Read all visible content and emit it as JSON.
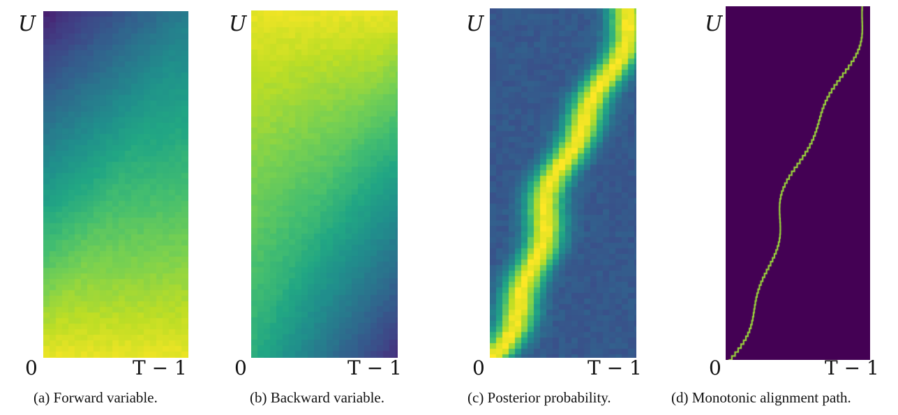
{
  "chart_data": [
    {
      "type": "heatmap",
      "caption": "(a) Forward variable.",
      "ylabel_top": "U",
      "origin_label": "0",
      "x_end_label": "T − 1",
      "colormap": "viridis",
      "pattern": "forward"
    },
    {
      "type": "heatmap",
      "caption": "(b) Backward variable.",
      "ylabel_top": "U",
      "origin_label": "0",
      "x_end_label": "T − 1",
      "colormap": "viridis",
      "pattern": "backward"
    },
    {
      "type": "heatmap",
      "caption": "(c) Posterior probability.",
      "ylabel_top": "U",
      "origin_label": "0",
      "x_end_label": "T − 1",
      "colormap": "viridis",
      "pattern": "posterior"
    },
    {
      "type": "heatmap",
      "caption": "(d) Monotonic alignment path.",
      "ylabel_top": "U",
      "origin_label": "0",
      "x_end_label": "T − 1",
      "colormap": "viridis",
      "pattern": "alignment"
    }
  ]
}
